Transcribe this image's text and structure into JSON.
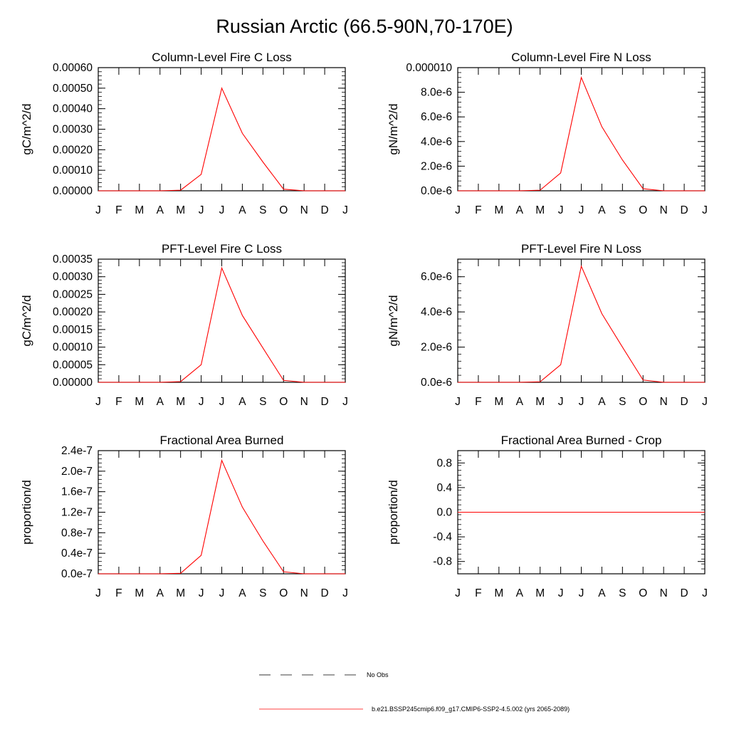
{
  "title": "Russian Arctic (66.5-90N,70-170E)",
  "months": [
    "J",
    "F",
    "M",
    "A",
    "M",
    "J",
    "J",
    "A",
    "S",
    "O",
    "N",
    "D",
    "J"
  ],
  "chart_data": [
    {
      "type": "line",
      "title": "Column-Level Fire C Loss",
      "ylabel": "gC/m^2/d",
      "ylim": [
        0,
        0.0006
      ],
      "yticks": [
        0,
        0.0001,
        0.0002,
        0.0003,
        0.0004,
        0.0005,
        0.0006
      ],
      "yticklabels": [
        "0.00000",
        "0.00010",
        "0.00020",
        "0.00030",
        "0.00040",
        "0.00050",
        "0.00060"
      ],
      "x": [
        "J",
        "F",
        "M",
        "A",
        "M",
        "J",
        "J",
        "A",
        "S",
        "O",
        "N",
        "D",
        "J"
      ],
      "series": [
        {
          "name": "b.e21.BSSP245cmip6.f09_g17.CMIP6-SSP2-4.5.002 (yrs 2065-2089)",
          "color": "#ff0000",
          "values": [
            0,
            0,
            0,
            0,
            3e-06,
            8e-05,
            0.0005,
            0.00028,
            0.00014,
            8e-06,
            0,
            0,
            0
          ]
        }
      ]
    },
    {
      "type": "line",
      "title": "Column-Level Fire N Loss",
      "ylabel": "gN/m^2/d",
      "ylim": [
        0,
        1e-05
      ],
      "yticks": [
        0,
        2e-06,
        4e-06,
        6e-06,
        8e-06,
        1e-05
      ],
      "yticklabels": [
        "0.0e-6",
        "2.0e-6",
        "4.0e-6",
        "6.0e-6",
        "8.0e-6",
        "0.000010"
      ],
      "x": [
        "J",
        "F",
        "M",
        "A",
        "M",
        "J",
        "J",
        "A",
        "S",
        "O",
        "N",
        "D",
        "J"
      ],
      "series": [
        {
          "name": "b.e21.BSSP245cmip6.f09_g17.CMIP6-SSP2-4.5.002 (yrs 2065-2089)",
          "color": "#ff0000",
          "values": [
            0,
            0,
            0,
            0,
            5e-08,
            1.45e-06,
            9.2e-06,
            5.2e-06,
            2.5e-06,
            1.7e-07,
            0,
            0,
            0
          ]
        }
      ]
    },
    {
      "type": "line",
      "title": "PFT-Level Fire C Loss",
      "ylabel": "gC/m^2/d",
      "ylim": [
        0,
        0.00035
      ],
      "yticks": [
        0,
        5e-05,
        0.0001,
        0.00015,
        0.0002,
        0.00025,
        0.0003,
        0.00035
      ],
      "yticklabels": [
        "0.00000",
        "0.00005",
        "0.00010",
        "0.00015",
        "0.00020",
        "0.00025",
        "0.00030",
        "0.00035"
      ],
      "x": [
        "J",
        "F",
        "M",
        "A",
        "M",
        "J",
        "J",
        "A",
        "S",
        "O",
        "N",
        "D",
        "J"
      ],
      "series": [
        {
          "name": "b.e21.BSSP245cmip6.f09_g17.CMIP6-SSP2-4.5.002 (yrs 2065-2089)",
          "color": "#ff0000",
          "values": [
            0,
            0,
            0,
            0,
            2e-06,
            5e-05,
            0.000325,
            0.00019,
            9.75e-05,
            5.5e-06,
            0,
            0,
            0
          ]
        }
      ]
    },
    {
      "type": "line",
      "title": "PFT-Level Fire N Loss",
      "ylabel": "gN/m^2/d",
      "ylim": [
        0,
        7e-06
      ],
      "yticks": [
        0,
        2e-06,
        4e-06,
        6e-06
      ],
      "yticklabels": [
        "0.0e-6",
        "2.0e-6",
        "4.0e-6",
        "6.0e-6"
      ],
      "x": [
        "J",
        "F",
        "M",
        "A",
        "M",
        "J",
        "J",
        "A",
        "S",
        "O",
        "N",
        "D",
        "J"
      ],
      "series": [
        {
          "name": "b.e21.BSSP245cmip6.f09_g17.CMIP6-SSP2-4.5.002 (yrs 2065-2089)",
          "color": "#ff0000",
          "values": [
            0,
            0,
            0,
            0,
            3e-08,
            1e-06,
            6.6e-06,
            3.9e-06,
            2e-06,
            1.3e-07,
            0,
            0,
            0
          ]
        }
      ]
    },
    {
      "type": "line",
      "title": "Fractional Area Burned",
      "ylabel": "proportion/d",
      "ylim": [
        0,
        2.4e-07
      ],
      "yticks": [
        0,
        4e-08,
        8e-08,
        1.2e-07,
        1.6e-07,
        2e-07,
        2.4e-07
      ],
      "yticklabels": [
        "0.0e-7",
        "0.4e-7",
        "0.8e-7",
        "1.2e-7",
        "1.6e-7",
        "2.0e-7",
        "2.4e-7"
      ],
      "x": [
        "J",
        "F",
        "M",
        "A",
        "M",
        "J",
        "J",
        "A",
        "S",
        "O",
        "N",
        "D",
        "J"
      ],
      "series": [
        {
          "name": "b.e21.BSSP245cmip6.f09_g17.CMIP6-SSP2-4.5.002 (yrs 2065-2089)",
          "color": "#ff0000",
          "values": [
            0,
            0,
            0,
            0,
            1e-09,
            3.6e-08,
            2.21e-07,
            1.3e-07,
            6.4e-08,
            4e-09,
            0,
            0,
            0
          ]
        }
      ]
    },
    {
      "type": "line",
      "title": "Fractional Area Burned - Crop",
      "ylabel": "proportion/d",
      "ylim": [
        -1.0,
        1.0
      ],
      "yticks": [
        -0.8,
        -0.4,
        0.0,
        0.4,
        0.8
      ],
      "yticklabels": [
        "-0.8",
        "-0.4",
        "0.0",
        "0.4",
        "0.8"
      ],
      "x": [
        "J",
        "F",
        "M",
        "A",
        "M",
        "J",
        "J",
        "A",
        "S",
        "O",
        "N",
        "D",
        "J"
      ],
      "series": [
        {
          "name": "b.e21.BSSP245cmip6.f09_g17.CMIP6-SSP2-4.5.002 (yrs 2065-2089)",
          "color": "#ff0000",
          "values": [
            0,
            0,
            0,
            0,
            0,
            0,
            0,
            0,
            0,
            0,
            0,
            0,
            0
          ]
        }
      ]
    }
  ],
  "legend": [
    {
      "label": "No Obs",
      "color": "#000000",
      "style": "dashed"
    },
    {
      "label": "b.e21.BSSP245cmip6.f09_g17.CMIP6-SSP2-4.5.002 (yrs 2065-2089)",
      "color": "#ff0000",
      "style": "solid"
    }
  ]
}
